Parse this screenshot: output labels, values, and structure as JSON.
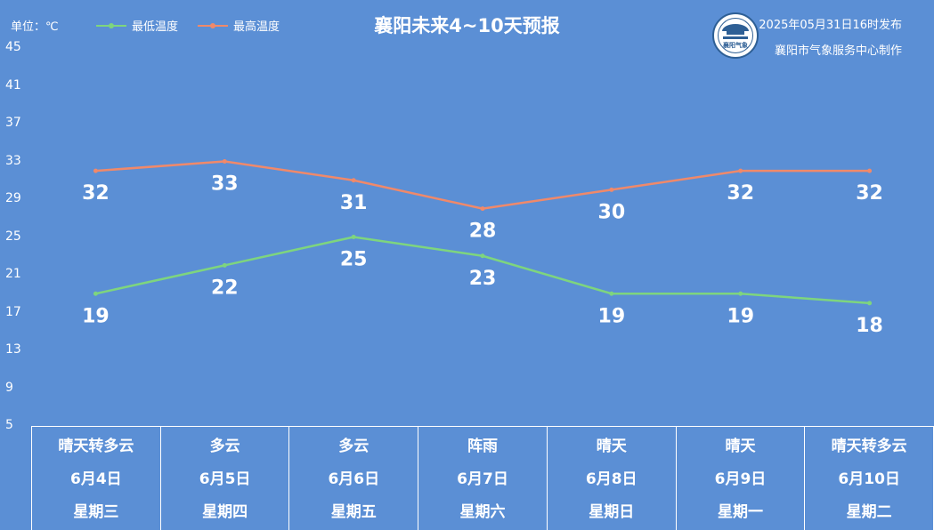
{
  "header": {
    "unit": "单位：℃",
    "title": "襄阳未来4~10天预报",
    "publish_time": "2025年05月31日16时发布",
    "maker": "襄阳市气象服务中心制作",
    "logo_text": "襄阳气象"
  },
  "legend": [
    {
      "name": "最低温度",
      "color": "#7ed57e"
    },
    {
      "name": "最高温度",
      "color": "#f0896a"
    }
  ],
  "chart_data": {
    "type": "line",
    "title": "襄阳未来4~10天预报",
    "ylabel": "单位：℃",
    "ylim": [
      5,
      45
    ],
    "yticks": [
      5,
      9,
      13,
      17,
      21,
      25,
      29,
      33,
      37,
      41,
      45
    ],
    "grid": false,
    "legend_position": "top-left",
    "categories": [
      "6月4日",
      "6月5日",
      "6月6日",
      "6月7日",
      "6月8日",
      "6月9日",
      "6月10日"
    ],
    "series": [
      {
        "name": "最高温度",
        "color": "#f0896a",
        "values": [
          32,
          33,
          31,
          28,
          30,
          32,
          32
        ]
      },
      {
        "name": "最低温度",
        "color": "#7ed57e",
        "values": [
          19,
          22,
          25,
          23,
          19,
          19,
          18
        ]
      }
    ]
  },
  "days": [
    {
      "weather": "晴天转多云",
      "date": "6月4日",
      "weekday": "星期三"
    },
    {
      "weather": "多云",
      "date": "6月5日",
      "weekday": "星期四"
    },
    {
      "weather": "多云",
      "date": "6月6日",
      "weekday": "星期五"
    },
    {
      "weather": "阵雨",
      "date": "6月7日",
      "weekday": "星期六"
    },
    {
      "weather": "晴天",
      "date": "6月8日",
      "weekday": "星期日"
    },
    {
      "weather": "晴天",
      "date": "6月9日",
      "weekday": "星期一"
    },
    {
      "weather": "晴天转多云",
      "date": "6月10日",
      "weekday": "星期二"
    }
  ]
}
